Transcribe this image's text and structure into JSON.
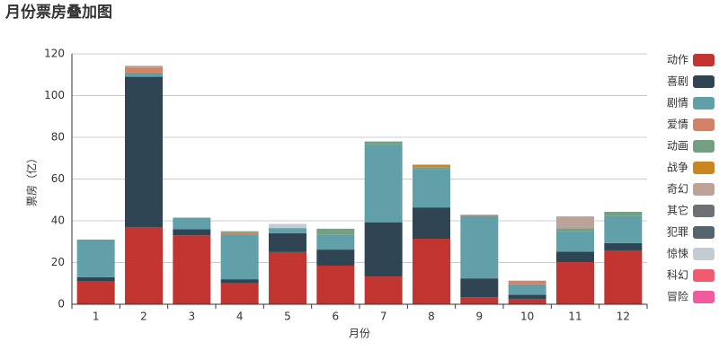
{
  "chart_data": {
    "type": "stacked-bar",
    "title": "月份票房叠加图",
    "x_label": "月份",
    "y_label": "票房（亿）",
    "categories": [
      "1",
      "2",
      "3",
      "4",
      "5",
      "6",
      "7",
      "8",
      "9",
      "10",
      "11",
      "12"
    ],
    "ylim": [
      0,
      120
    ],
    "yticks": [
      0,
      20,
      40,
      60,
      80,
      100,
      120
    ],
    "grid": true,
    "legend": "right",
    "series": [
      {
        "name": "动作",
        "color": "#c23531",
        "values": [
          11,
          37,
          33,
          10,
          25,
          18.5,
          13.3,
          31.4,
          3.4,
          2.6,
          20.2,
          25.8
        ]
      },
      {
        "name": "喜剧",
        "color": "#2f4554",
        "values": [
          2,
          72,
          3,
          2,
          9,
          7.7,
          26,
          15,
          9,
          2,
          5,
          3.5
        ]
      },
      {
        "name": "剧情",
        "color": "#61a0a8",
        "values": [
          18,
          2,
          5.5,
          21.5,
          2.5,
          7,
          37.4,
          18.5,
          30,
          5,
          10,
          13
        ]
      },
      {
        "name": "爱情",
        "color": "#d48265",
        "values": [
          0,
          2.5,
          0,
          1,
          0,
          0,
          0,
          0,
          0.5,
          1.7,
          0,
          0
        ]
      },
      {
        "name": "动画",
        "color": "#749f83",
        "values": [
          0,
          0,
          0,
          0.5,
          0,
          3,
          1.3,
          0.8,
          0,
          0,
          1.2,
          2
        ]
      },
      {
        "name": "战争",
        "color": "#ca8622",
        "values": [
          0,
          0,
          0,
          0,
          0,
          0,
          0,
          1.2,
          0,
          0,
          0,
          0
        ]
      },
      {
        "name": "奇幻",
        "color": "#bda29a",
        "values": [
          0,
          0.8,
          0,
          0,
          0,
          0,
          0,
          0,
          0,
          0,
          5.7,
          0
        ]
      },
      {
        "name": "其它",
        "color": "#6e7074",
        "values": [
          0,
          0,
          0,
          0,
          0,
          0,
          0,
          0,
          0,
          0,
          0,
          0
        ]
      },
      {
        "name": "犯罪",
        "color": "#546570",
        "values": [
          0,
          0,
          0,
          0,
          0,
          0,
          0,
          0,
          0,
          0,
          0,
          0
        ]
      },
      {
        "name": "惊悚",
        "color": "#c4ccd3",
        "values": [
          0,
          0,
          0,
          0,
          2,
          0,
          0,
          0,
          0,
          0,
          0,
          0
        ]
      },
      {
        "name": "科幻",
        "color": "#f05b72",
        "values": [
          0,
          0,
          0,
          0,
          0,
          0,
          0,
          0,
          0,
          0,
          0,
          0
        ]
      },
      {
        "name": "冒险",
        "color": "#ef5b9c",
        "values": [
          0,
          0,
          0,
          0,
          0,
          0,
          0,
          0,
          0,
          0,
          0,
          0
        ]
      }
    ]
  }
}
